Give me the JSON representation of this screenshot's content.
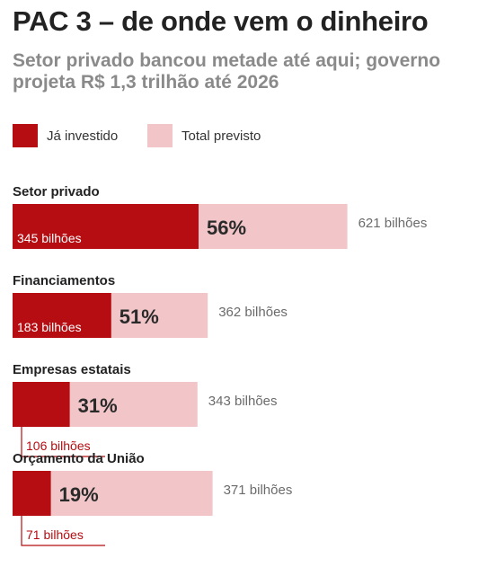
{
  "header": {
    "title": "PAC 3 – de onde vem o dinheiro",
    "subtitle": "Setor privado bancou metade até aqui; governo projeta R$ 1,3 trilhão até 2026"
  },
  "legend": {
    "invested_label": "Já investido",
    "planned_label": "Total previsto"
  },
  "colors": {
    "invested": "#b50d12",
    "planned": "#f2c6c8",
    "text_dark": "#222222",
    "text_muted": "#6b6b6b"
  },
  "chart_data": {
    "type": "bar",
    "orientation": "horizontal",
    "unit": "bilhões",
    "categories": [
      "Setor privado",
      "Financiamentos",
      "Empresas estatais",
      "Orçamento da União"
    ],
    "series": [
      {
        "name": "Já investido",
        "values": [
          345,
          183,
          106,
          71
        ],
        "labels": [
          "345 bilhões",
          "183 bilhões",
          "106 bilhões",
          "71 bilhões"
        ]
      },
      {
        "name": "Total previsto",
        "values": [
          621,
          362,
          343,
          371
        ],
        "labels": [
          "621 bilhões",
          "362 bilhões",
          "343 bilhões",
          "371 bilhões"
        ]
      }
    ],
    "percent_labels": [
      "56%",
      "51%",
      "31%",
      "19%"
    ],
    "legend_position": "top-left",
    "grid": false
  }
}
